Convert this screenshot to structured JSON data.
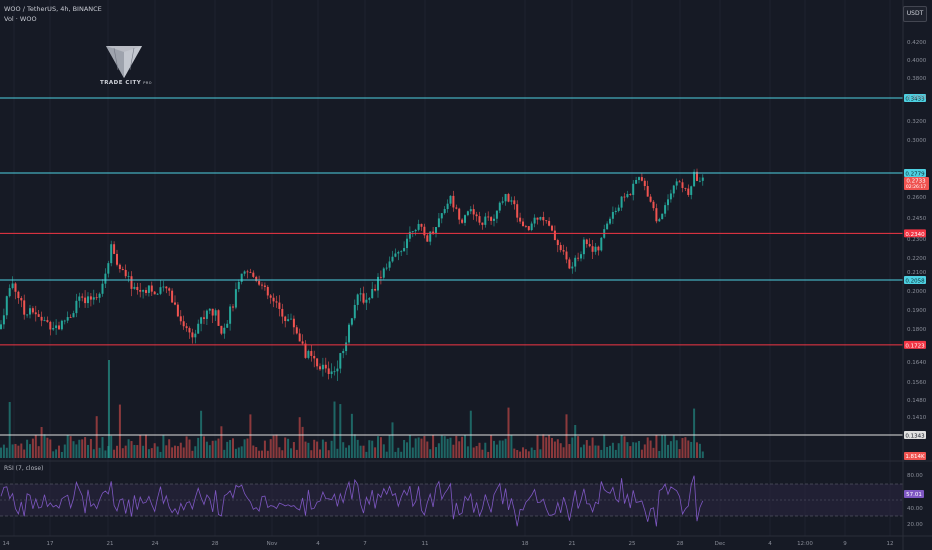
{
  "header": {
    "symbol_line": "WOO / TetherUS, 4h, BINANCE",
    "volume_label": "Vol · WOO"
  },
  "quote_currency": "USDT",
  "logo": {
    "text": "TRADE CITY",
    "small": "PRO"
  },
  "rsi_label": "RSI (7, close)",
  "colors": {
    "background": "#161a25",
    "up": "#26a69a",
    "down": "#ef5350",
    "cyan_line": "#4dd0e1",
    "red_line": "#f23645",
    "white_line": "#e0e0e0",
    "rsi_line": "#7e57c2",
    "rsi_band": "#2a2440"
  },
  "chart_data": {
    "type": "candlestick",
    "price_axis": {
      "ticks": [
        "0.4200",
        "0.4000",
        "0.3800",
        "0.3600",
        "0.3200",
        "0.3000",
        "0.2600",
        "0.2450",
        "0.2300",
        "0.2200",
        "0.2100",
        "0.2000",
        "0.1900",
        "0.1800",
        "0.1640",
        "0.1560",
        "0.1480",
        "0.1410"
      ]
    },
    "time_axis": {
      "labels": [
        "14",
        "17",
        "21",
        "24",
        "28",
        "Nov",
        "4",
        "7",
        "11",
        "18",
        "21",
        "25",
        "28",
        "Dec",
        "4",
        "12:00",
        "9",
        "12"
      ]
    },
    "levels": [
      {
        "price": 0.3433,
        "label": "0.3433",
        "color": "#4dd0e1"
      },
      {
        "price": 0.2779,
        "label": "0.2779",
        "color": "#4dd0e1"
      },
      {
        "price": 0.234,
        "label": "0.2340",
        "color": "#f23645"
      },
      {
        "price": 0.2058,
        "label": "0.2058",
        "color": "#4dd0e1"
      },
      {
        "price": 0.1723,
        "label": "0.1723",
        "color": "#f23645"
      },
      {
        "price": 0.1343,
        "label": "0.1343",
        "color": "#e0e0e0"
      }
    ],
    "last_price": {
      "value": "0.2733",
      "countdown": "02:26:17"
    },
    "volume_last_label": "1.814K",
    "rsi": {
      "period": 7,
      "last": "57.01",
      "axis_ticks": [
        "80.00",
        "40.00",
        "20.00"
      ],
      "band": [
        30,
        70
      ]
    },
    "price_path": [
      [
        0,
        0.18
      ],
      [
        6,
        0.195
      ],
      [
        12,
        0.205
      ],
      [
        18,
        0.198
      ],
      [
        24,
        0.188
      ],
      [
        30,
        0.192
      ],
      [
        36,
        0.186
      ],
      [
        42,
        0.185
      ],
      [
        48,
        0.183
      ],
      [
        54,
        0.182
      ],
      [
        60,
        0.181
      ],
      [
        66,
        0.186
      ],
      [
        72,
        0.188
      ],
      [
        78,
        0.197
      ],
      [
        84,
        0.193
      ],
      [
        90,
        0.195
      ],
      [
        96,
        0.198
      ],
      [
        102,
        0.2
      ],
      [
        108,
        0.217
      ],
      [
        112,
        0.228
      ],
      [
        116,
        0.22
      ],
      [
        120,
        0.212
      ],
      [
        126,
        0.207
      ],
      [
        132,
        0.203
      ],
      [
        138,
        0.2
      ],
      [
        144,
        0.201
      ],
      [
        150,
        0.203
      ],
      [
        156,
        0.197
      ],
      [
        162,
        0.2
      ],
      [
        168,
        0.201
      ],
      [
        174,
        0.194
      ],
      [
        180,
        0.186
      ],
      [
        186,
        0.18
      ],
      [
        192,
        0.178
      ],
      [
        198,
        0.183
      ],
      [
        204,
        0.186
      ],
      [
        210,
        0.19
      ],
      [
        216,
        0.187
      ],
      [
        222,
        0.18
      ],
      [
        228,
        0.186
      ],
      [
        234,
        0.195
      ],
      [
        240,
        0.205
      ],
      [
        246,
        0.21
      ],
      [
        252,
        0.208
      ],
      [
        258,
        0.207
      ],
      [
        264,
        0.2
      ],
      [
        270,
        0.196
      ],
      [
        276,
        0.192
      ],
      [
        282,
        0.188
      ],
      [
        288,
        0.185
      ],
      [
        294,
        0.182
      ],
      [
        300,
        0.175
      ],
      [
        306,
        0.168
      ],
      [
        312,
        0.165
      ],
      [
        318,
        0.16
      ],
      [
        324,
        0.162
      ],
      [
        330,
        0.16
      ],
      [
        336,
        0.163
      ],
      [
        342,
        0.168
      ],
      [
        348,
        0.18
      ],
      [
        354,
        0.192
      ],
      [
        360,
        0.198
      ],
      [
        366,
        0.195
      ],
      [
        372,
        0.2
      ],
      [
        378,
        0.206
      ],
      [
        384,
        0.213
      ],
      [
        390,
        0.218
      ],
      [
        396,
        0.22
      ],
      [
        402,
        0.226
      ],
      [
        408,
        0.232
      ],
      [
        414,
        0.24
      ],
      [
        420,
        0.238
      ],
      [
        426,
        0.23
      ],
      [
        432,
        0.235
      ],
      [
        438,
        0.243
      ],
      [
        444,
        0.252
      ],
      [
        450,
        0.26
      ],
      [
        456,
        0.25
      ],
      [
        462,
        0.244
      ],
      [
        468,
        0.252
      ],
      [
        474,
        0.246
      ],
      [
        480,
        0.24
      ],
      [
        486,
        0.245
      ],
      [
        492,
        0.242
      ],
      [
        498,
        0.25
      ],
      [
        504,
        0.262
      ],
      [
        510,
        0.258
      ],
      [
        516,
        0.25
      ],
      [
        522,
        0.238
      ],
      [
        528,
        0.236
      ],
      [
        534,
        0.244
      ],
      [
        540,
        0.248
      ],
      [
        546,
        0.242
      ],
      [
        552,
        0.234
      ],
      [
        558,
        0.228
      ],
      [
        564,
        0.222
      ],
      [
        570,
        0.212
      ],
      [
        576,
        0.218
      ],
      [
        582,
        0.226
      ],
      [
        588,
        0.23
      ],
      [
        594,
        0.222
      ],
      [
        600,
        0.226
      ],
      [
        606,
        0.24
      ],
      [
        612,
        0.25
      ],
      [
        618,
        0.252
      ],
      [
        624,
        0.262
      ],
      [
        630,
        0.262
      ],
      [
        636,
        0.272
      ],
      [
        640,
        0.274
      ],
      [
        646,
        0.266
      ],
      [
        652,
        0.256
      ],
      [
        658,
        0.24
      ],
      [
        664,
        0.253
      ],
      [
        670,
        0.264
      ],
      [
        676,
        0.272
      ],
      [
        682,
        0.268
      ],
      [
        688,
        0.262
      ],
      [
        694,
        0.276
      ],
      [
        700,
        0.272
      ],
      [
        705,
        0.273
      ]
    ]
  }
}
